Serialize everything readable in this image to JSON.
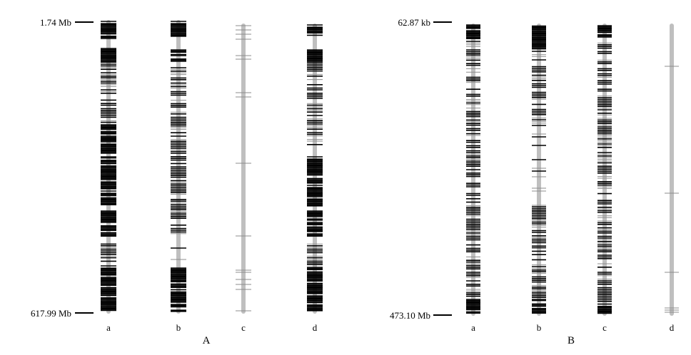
{
  "panels": [
    {
      "id": "A",
      "label": "A",
      "top_scale_label": "1.74 Mb",
      "bottom_scale_label": "617.99 Mb",
      "tracks": [
        {
          "label": "a",
          "density": "high"
        },
        {
          "label": "b",
          "density": "medium"
        },
        {
          "label": "c",
          "density": "low"
        },
        {
          "label": "d",
          "density": "high"
        }
      ]
    },
    {
      "id": "B",
      "label": "B",
      "top_scale_label": "62.87 kb",
      "bottom_scale_label": "473.10 Mb",
      "tracks": [
        {
          "label": "a",
          "density": "high"
        },
        {
          "label": "b",
          "density": "medium"
        },
        {
          "label": "c",
          "density": "medium"
        },
        {
          "label": "d",
          "density": "very-low"
        }
      ]
    }
  ],
  "colors": {
    "chromosome_bar": "#bfbfbf",
    "marker_dark": "#000000",
    "marker_light": "#8c8c8c"
  }
}
